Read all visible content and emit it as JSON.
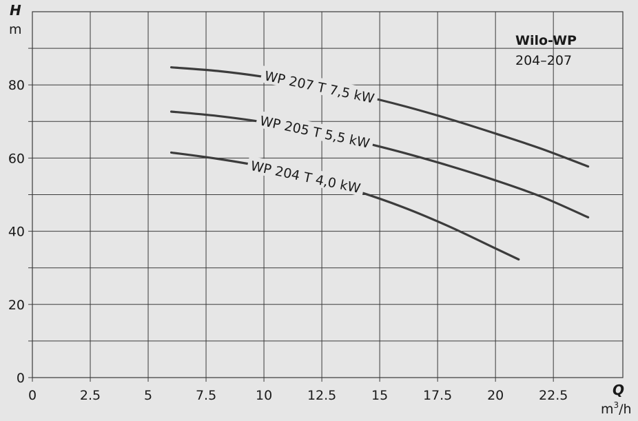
{
  "chart_data": {
    "type": "line",
    "title": "",
    "brand": {
      "name": "Wilo-WP",
      "range": "204–207"
    },
    "x_axis": {
      "symbol": "Q",
      "unit_base": "m",
      "unit_sup": "3",
      "unit_suffix": "/h",
      "ticks": [
        {
          "value": 0,
          "label": "0"
        },
        {
          "value": 2.5,
          "label": "2.5"
        },
        {
          "value": 5,
          "label": "5"
        },
        {
          "value": 7.5,
          "label": "7.5"
        },
        {
          "value": 10,
          "label": "10"
        },
        {
          "value": 12.5,
          "label": "12.5"
        },
        {
          "value": 15,
          "label": "15"
        },
        {
          "value": 17.5,
          "label": "17.5"
        },
        {
          "value": 20,
          "label": "20"
        },
        {
          "value": 22.5,
          "label": "22.5"
        }
      ],
      "range": [
        0,
        25.5
      ]
    },
    "y_axis": {
      "symbol": "H",
      "unit": "m",
      "ticks": [
        {
          "value": 0,
          "label": "0"
        },
        {
          "value": 20,
          "label": "20"
        },
        {
          "value": 40,
          "label": "40"
        },
        {
          "value": 60,
          "label": "60"
        },
        {
          "value": 80,
          "label": "80"
        }
      ],
      "minor_ticks": [
        10,
        30,
        50,
        70,
        90
      ],
      "range": [
        0,
        100
      ]
    },
    "grid": true,
    "series": [
      {
        "name": "WP 207 T 7,5 kW",
        "x": [
          6,
          8,
          10,
          12,
          14,
          16,
          18,
          20,
          22,
          24
        ],
        "y": [
          84.8,
          83.8,
          82.2,
          80.0,
          77.4,
          74.3,
          70.7,
          66.7,
          62.5,
          57.7
        ]
      },
      {
        "name": "WP 205 T 5,5 kW",
        "x": [
          6,
          8,
          10,
          12,
          14,
          16,
          18,
          20,
          22,
          24
        ],
        "y": [
          72.7,
          71.5,
          69.8,
          67.5,
          64.7,
          61.5,
          57.9,
          53.9,
          49.4,
          43.8
        ]
      },
      {
        "name": "WP 204 T 4,0 kW",
        "x": [
          6,
          8,
          10,
          12,
          14,
          16,
          18,
          20,
          21
        ],
        "y": [
          61.5,
          59.8,
          57.6,
          54.6,
          51.0,
          46.6,
          41.3,
          35.3,
          32.3
        ]
      }
    ]
  }
}
